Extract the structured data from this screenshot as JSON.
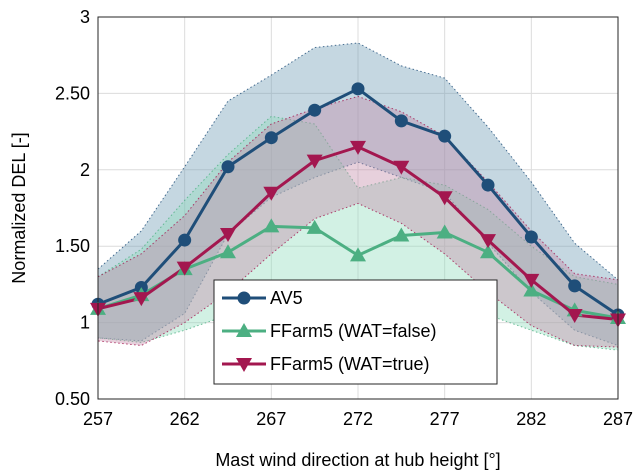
{
  "chart_data": {
    "type": "line",
    "xlabel": "Mast wind direction at hub height [°]",
    "ylabel": "Normalized DEL [-]",
    "xlim": [
      257,
      287
    ],
    "ylim": [
      0.5,
      3
    ],
    "xticks": [
      "257",
      "262",
      "267",
      "272",
      "277",
      "282",
      "287"
    ],
    "yticks": [
      "0.50",
      "1",
      "1.50",
      "2",
      "2.50",
      "3"
    ],
    "grid": true,
    "legend_position": "bottom-center",
    "x": [
      257,
      259.5,
      262,
      264.5,
      267,
      269.5,
      272,
      274.5,
      277,
      279.5,
      282,
      284.5,
      287
    ],
    "series": [
      {
        "name": "AV5",
        "color": "#1f4e79",
        "marker": "circle",
        "values": [
          1.12,
          1.23,
          1.54,
          2.02,
          2.21,
          2.39,
          2.53,
          2.32,
          2.22,
          1.9,
          1.56,
          1.24,
          1.05
        ],
        "band_upper": [
          1.35,
          1.6,
          2.02,
          2.45,
          2.62,
          2.8,
          2.83,
          2.68,
          2.6,
          2.28,
          1.92,
          1.52,
          1.28
        ],
        "band_lower": [
          0.9,
          0.88,
          1.06,
          1.58,
          1.82,
          1.95,
          2.05,
          1.95,
          1.85,
          1.52,
          1.2,
          0.95,
          0.85
        ],
        "band_color": "#6e9cb4"
      },
      {
        "name": "FFarm5 (WAT=false)",
        "color": "#4caf82",
        "marker": "triangle-up",
        "values": [
          1.09,
          1.18,
          1.35,
          1.46,
          1.63,
          1.62,
          1.44,
          1.57,
          1.59,
          1.46,
          1.21,
          1.08,
          1.03
        ],
        "band_upper": [
          1.3,
          1.48,
          1.8,
          2.1,
          2.35,
          2.3,
          1.88,
          1.95,
          1.9,
          1.74,
          1.5,
          1.3,
          1.25
        ],
        "band_lower": [
          0.9,
          0.87,
          0.95,
          1.05,
          1.12,
          1.15,
          1.16,
          1.18,
          1.15,
          1.05,
          0.95,
          0.85,
          0.82
        ],
        "band_color": "#8fdcbc"
      },
      {
        "name": "FFarm5 (WAT=true)",
        "color": "#a3174f",
        "marker": "triangle-down",
        "values": [
          1.09,
          1.16,
          1.36,
          1.58,
          1.85,
          2.06,
          2.15,
          2.02,
          1.82,
          1.54,
          1.28,
          1.05,
          1.02
        ],
        "band_upper": [
          1.3,
          1.45,
          1.7,
          2.05,
          2.3,
          2.4,
          2.48,
          2.38,
          2.22,
          1.92,
          1.6,
          1.32,
          1.28
        ],
        "band_lower": [
          0.88,
          0.85,
          1.0,
          1.2,
          1.45,
          1.68,
          1.78,
          1.65,
          1.45,
          1.2,
          0.98,
          0.85,
          0.84
        ],
        "band_color": "#c48aa8"
      }
    ]
  }
}
